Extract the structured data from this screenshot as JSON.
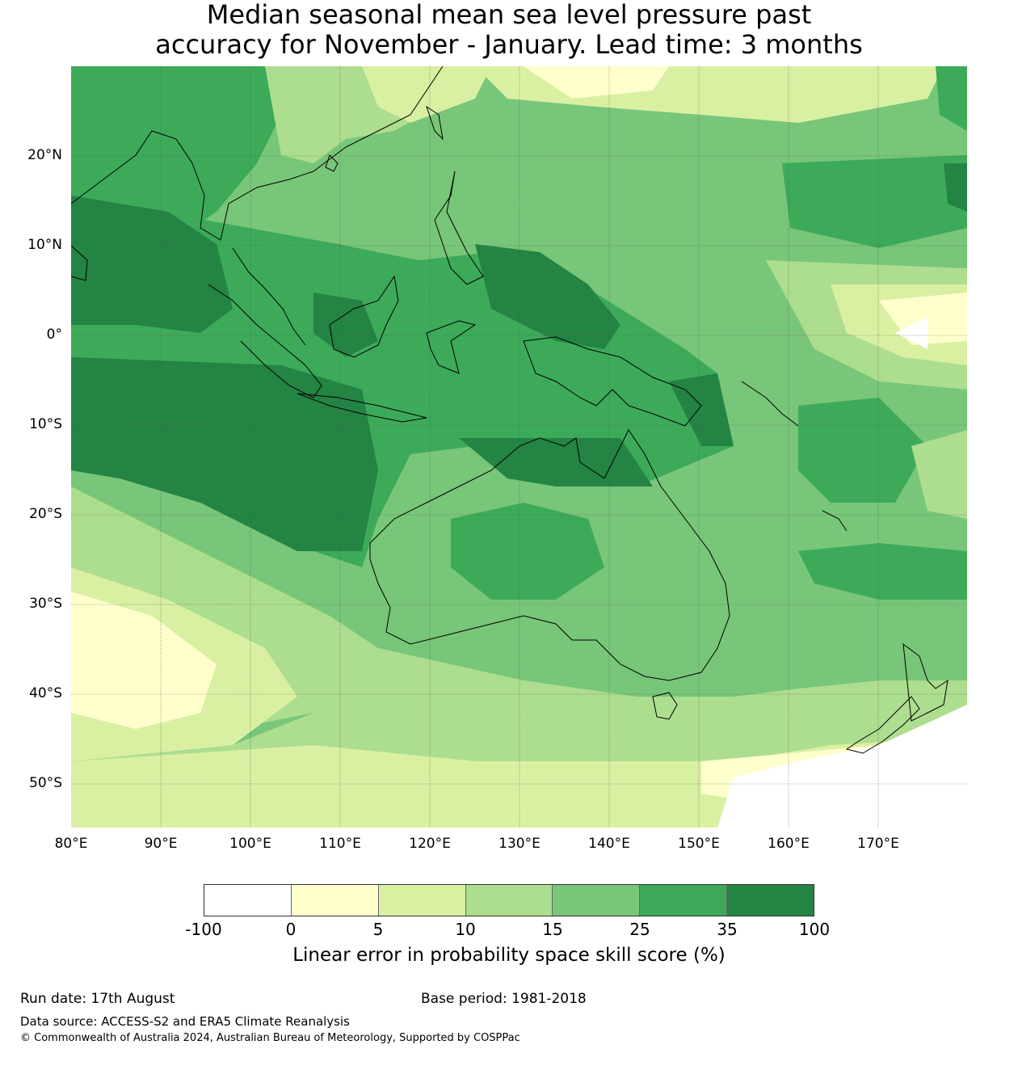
{
  "title": {
    "line1": "Median seasonal mean sea level pressure past",
    "line2": "accuracy for November - January. Lead time: 3 months"
  },
  "map": {
    "lat_labels": [
      "20°N",
      "10°N",
      "0°",
      "10°S",
      "20°S",
      "30°S",
      "40°S",
      "50°S"
    ],
    "lon_labels": [
      "80°E",
      "90°E",
      "100°E",
      "110°E",
      "120°E",
      "130°E",
      "140°E",
      "150°E",
      "160°E",
      "170°E"
    ],
    "colors": {
      "lt0": "#ffffff",
      "c0_5": "#ffffcc",
      "c5_10": "#d9f0a3",
      "c10_15": "#addd8e",
      "c15_25": "#78c679",
      "c25_35": "#3daa5a",
      "c35_100": "#238443"
    }
  },
  "colorbar": {
    "ticks": [
      "-100",
      "0",
      "5",
      "10",
      "15",
      "25",
      "35",
      "100"
    ],
    "colors": [
      "#ffffff",
      "#ffffcc",
      "#d9f0a3",
      "#addd8e",
      "#78c679",
      "#3daa5a",
      "#238443"
    ],
    "label": "Linear error in probability space skill score (%)"
  },
  "footer": {
    "run_date": "Run date: 17th August",
    "base_period": "Base period: 1981-2018",
    "data_source": "Data source: ACCESS-S2 and ERA5 Climate Reanalysis",
    "copyright": "© Commonwealth of Australia 2024, Australian Bureau of Meteorology, Supported by COSPPac"
  }
}
